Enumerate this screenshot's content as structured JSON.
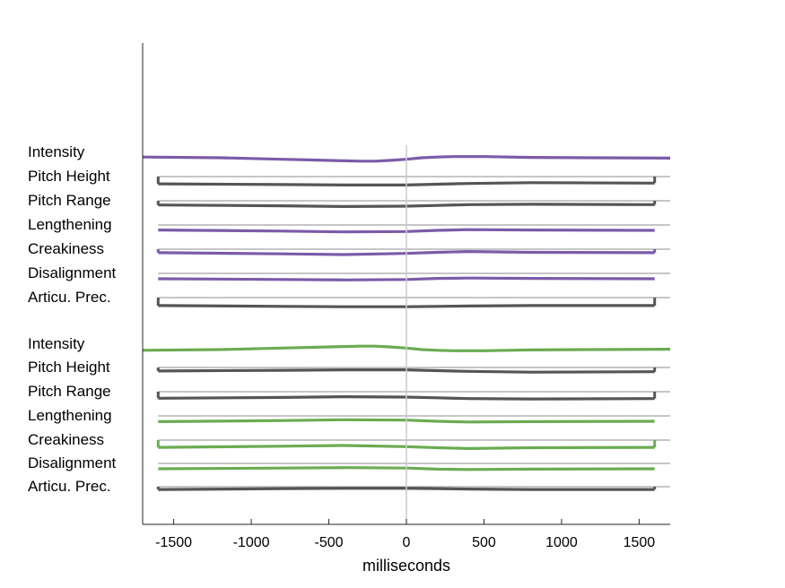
{
  "chart_data": {
    "type": "line",
    "xlabel": "milliseconds",
    "xlim": [
      -1700,
      1700
    ],
    "xticks": [
      -1500,
      -1000,
      -500,
      0,
      500,
      1000,
      1500
    ],
    "xtick_labels": [
      "-1500",
      "-1000",
      "-500",
      "0",
      "500",
      "1000",
      "1500"
    ],
    "center_line_x": 0,
    "colors": {
      "purple": "#7b5ba8",
      "green": "#6aac52",
      "gray": "#555555",
      "baseline": "#8c8c8c",
      "center": "#cccccc"
    },
    "groups": [
      {
        "color": "purple",
        "rows": [
          {
            "label": "Intensity",
            "color": "purple",
            "x": [
              -1700,
              -1200,
              -800,
              -600,
              -400,
              -300,
              -200,
              -100,
              0,
              100,
              200,
              300,
              500,
              800,
              1200,
              1700
            ],
            "y": [
              0.2,
              0.0,
              -0.4,
              -0.6,
              -0.8,
              -0.9,
              -0.9,
              -0.7,
              -0.4,
              0.0,
              0.2,
              0.3,
              0.3,
              0.1,
              0.0,
              -0.1
            ],
            "edge_ticks": false
          },
          {
            "label": "Pitch Height",
            "color": "gray",
            "x": [
              -1600,
              -800,
              -400,
              0,
              200,
              400,
              800,
              1600
            ],
            "y": [
              -0.5,
              -0.7,
              -0.8,
              -0.8,
              -0.6,
              -0.4,
              -0.2,
              -0.3
            ],
            "edge_ticks": true
          },
          {
            "label": "Pitch Range",
            "color": "gray",
            "x": [
              -1600,
              -800,
              -400,
              0,
              200,
              400,
              800,
              1600
            ],
            "y": [
              0.3,
              0.1,
              -0.1,
              0.0,
              0.2,
              0.4,
              0.5,
              0.4
            ],
            "edge_ticks": true
          },
          {
            "label": "Lengthening",
            "color": "purple",
            "x": [
              -1600,
              -800,
              -400,
              0,
              200,
              400,
              800,
              1600
            ],
            "y": [
              0.1,
              -0.2,
              -0.4,
              -0.3,
              0.0,
              0.2,
              0.1,
              0.0
            ],
            "edge_ticks": false
          },
          {
            "label": "Creakiness",
            "color": "purple",
            "x": [
              -1600,
              -800,
              -400,
              0,
              200,
              400,
              800,
              1600
            ],
            "y": [
              0.5,
              0.2,
              0.0,
              0.3,
              0.6,
              0.8,
              0.6,
              0.5
            ],
            "edge_ticks": true
          },
          {
            "label": "Disalignment",
            "color": "purple",
            "x": [
              -1600,
              -800,
              -400,
              0,
              200,
              400,
              800,
              1600
            ],
            "y": [
              0.0,
              -0.2,
              -0.3,
              -0.2,
              0.1,
              0.2,
              0.1,
              0.0
            ],
            "edge_ticks": false
          },
          {
            "label": "Articu. Prec.",
            "color": "gray",
            "x": [
              -1600,
              -800,
              -400,
              0,
              200,
              400,
              800,
              1600
            ],
            "y": [
              -0.7,
              -0.9,
              -1.0,
              -1.0,
              -0.9,
              -0.8,
              -0.7,
              -0.7
            ],
            "edge_ticks": true
          }
        ]
      },
      {
        "color": "green",
        "rows": [
          {
            "label": "Intensity",
            "color": "green",
            "x": [
              -1700,
              -1200,
              -800,
              -600,
              -400,
              -300,
              -200,
              -100,
              0,
              100,
              200,
              300,
              500,
              800,
              1200,
              1700
            ],
            "y": [
              -0.2,
              0.0,
              0.4,
              0.6,
              0.8,
              0.9,
              0.9,
              0.7,
              0.4,
              0.0,
              -0.2,
              -0.3,
              -0.3,
              -0.1,
              0.0,
              0.1
            ],
            "edge_ticks": false
          },
          {
            "label": "Pitch Height",
            "color": "gray",
            "x": [
              -1600,
              -800,
              -400,
              0,
              200,
              400,
              800,
              1600
            ],
            "y": [
              0.5,
              0.7,
              0.8,
              0.8,
              0.6,
              0.4,
              0.2,
              0.3
            ],
            "edge_ticks": true
          },
          {
            "label": "Pitch Range",
            "color": "gray",
            "x": [
              -1600,
              -800,
              -400,
              0,
              200,
              400,
              800,
              1600
            ],
            "y": [
              -0.3,
              -0.1,
              0.1,
              0.0,
              -0.2,
              -0.4,
              -0.5,
              -0.4
            ],
            "edge_ticks": true
          },
          {
            "label": "Lengthening",
            "color": "green",
            "x": [
              -1600,
              -800,
              -400,
              0,
              200,
              400,
              800,
              1600
            ],
            "y": [
              -0.1,
              0.2,
              0.4,
              0.3,
              0.0,
              -0.2,
              -0.1,
              0.0
            ],
            "edge_ticks": false
          },
          {
            "label": "Creakiness",
            "color": "green",
            "x": [
              -1600,
              -800,
              -400,
              0,
              200,
              400,
              800,
              1600
            ],
            "y": [
              -0.5,
              -0.2,
              0.0,
              -0.3,
              -0.6,
              -0.8,
              -0.6,
              -0.5
            ],
            "edge_ticks": true
          },
          {
            "label": "Disalignment",
            "color": "green",
            "x": [
              -1600,
              -800,
              -400,
              0,
              200,
              400,
              800,
              1600
            ],
            "y": [
              0.0,
              0.2,
              0.3,
              0.2,
              -0.1,
              -0.2,
              -0.1,
              0.0
            ],
            "edge_ticks": false
          },
          {
            "label": "Articu. Prec.",
            "color": "gray",
            "x": [
              -1600,
              -800,
              -400,
              0,
              200,
              400,
              800,
              1600
            ],
            "y": [
              0.7,
              0.9,
              1.0,
              1.0,
              0.9,
              0.8,
              0.7,
              0.7
            ],
            "edge_ticks": true
          }
        ]
      }
    ]
  }
}
